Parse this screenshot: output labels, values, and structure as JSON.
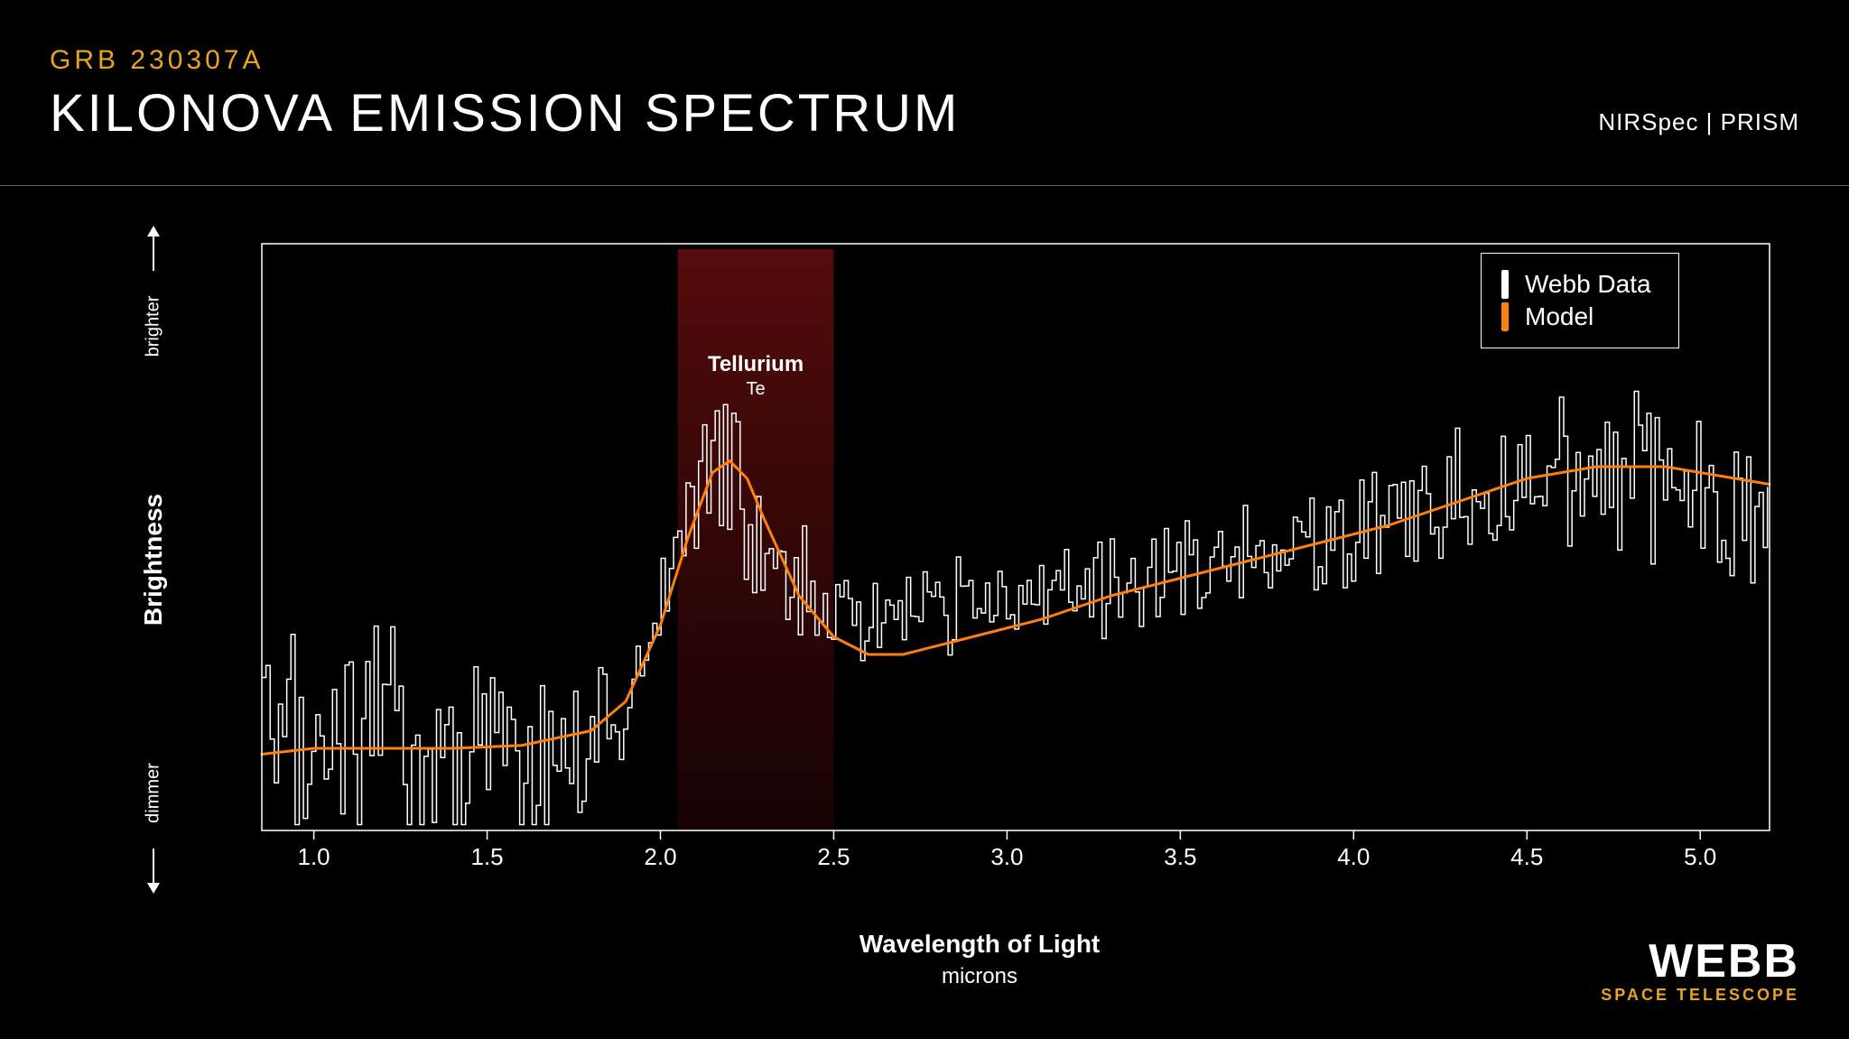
{
  "header": {
    "subtitle": "GRB 230307A",
    "subtitle_color": "#e8a41c",
    "title": "KILONOVA EMISSION SPECTRUM",
    "title_color": "#ffffff",
    "instrument": "NIRSpec | PRISM"
  },
  "axes": {
    "xlabel": "Wavelength of Light",
    "xsublabel": "microns",
    "ylabel": "Brightness",
    "ylabel_brighter": "brighter",
    "ylabel_dimmer": "dimmer"
  },
  "legend": {
    "items": [
      {
        "label": "Webb Data",
        "color": "#ffffff"
      },
      {
        "label": "Model",
        "color": "#ff7f0e"
      }
    ]
  },
  "feature": {
    "name": "Tellurium",
    "symbol": "Te",
    "x_start": 2.05,
    "x_end": 2.5,
    "band_color_top": "#5a0c0c",
    "band_color_bottom": "#2a0505"
  },
  "chart": {
    "background": "#000000",
    "axis_color": "#ffffff",
    "xlim": [
      0.85,
      5.2
    ],
    "ylim": [
      0,
      1.0
    ],
    "xticks": [
      1.0,
      1.5,
      2.0,
      2.5,
      3.0,
      3.5,
      4.0,
      4.5,
      5.0
    ],
    "xtick_labels": [
      "1.0",
      "1.5",
      "2.0",
      "2.5",
      "3.0",
      "3.5",
      "4.0",
      "4.5",
      "5.0"
    ],
    "tick_fontsize": 26,
    "model_color": "#ff7f0e",
    "model_width": 3,
    "data_color": "#ffffff",
    "data_width": 1.5,
    "model": [
      [
        0.85,
        0.13
      ],
      [
        1.0,
        0.14
      ],
      [
        1.2,
        0.14
      ],
      [
        1.4,
        0.14
      ],
      [
        1.6,
        0.145
      ],
      [
        1.8,
        0.17
      ],
      [
        1.9,
        0.22
      ],
      [
        2.0,
        0.35
      ],
      [
        2.08,
        0.5
      ],
      [
        2.15,
        0.61
      ],
      [
        2.2,
        0.63
      ],
      [
        2.25,
        0.6
      ],
      [
        2.3,
        0.53
      ],
      [
        2.4,
        0.4
      ],
      [
        2.5,
        0.33
      ],
      [
        2.6,
        0.3
      ],
      [
        2.7,
        0.3
      ],
      [
        2.9,
        0.33
      ],
      [
        3.1,
        0.36
      ],
      [
        3.3,
        0.4
      ],
      [
        3.5,
        0.43
      ],
      [
        3.7,
        0.46
      ],
      [
        3.9,
        0.49
      ],
      [
        4.1,
        0.52
      ],
      [
        4.3,
        0.56
      ],
      [
        4.5,
        0.6
      ],
      [
        4.7,
        0.62
      ],
      [
        4.9,
        0.62
      ],
      [
        5.1,
        0.6
      ],
      [
        5.2,
        0.59
      ]
    ],
    "data_baseline": [
      [
        0.85,
        0.1
      ],
      [
        0.95,
        0.13
      ],
      [
        1.05,
        0.16
      ],
      [
        1.15,
        0.18
      ],
      [
        1.25,
        0.19
      ],
      [
        1.35,
        0.15
      ],
      [
        1.45,
        0.13
      ],
      [
        1.55,
        0.12
      ],
      [
        1.65,
        0.11
      ],
      [
        1.75,
        0.14
      ],
      [
        1.85,
        0.18
      ],
      [
        1.95,
        0.3
      ],
      [
        2.05,
        0.48
      ],
      [
        2.12,
        0.65
      ],
      [
        2.18,
        0.62
      ],
      [
        2.25,
        0.55
      ],
      [
        2.35,
        0.45
      ],
      [
        2.45,
        0.4
      ],
      [
        2.55,
        0.36
      ],
      [
        2.7,
        0.36
      ],
      [
        2.85,
        0.37
      ],
      [
        3.0,
        0.39
      ],
      [
        3.15,
        0.4
      ],
      [
        3.3,
        0.43
      ],
      [
        3.45,
        0.44
      ],
      [
        3.6,
        0.46
      ],
      [
        3.75,
        0.47
      ],
      [
        3.9,
        0.49
      ],
      [
        4.05,
        0.51
      ],
      [
        4.2,
        0.54
      ],
      [
        4.35,
        0.57
      ],
      [
        4.5,
        0.61
      ],
      [
        4.65,
        0.62
      ],
      [
        4.8,
        0.61
      ],
      [
        4.95,
        0.58
      ],
      [
        5.1,
        0.56
      ],
      [
        5.2,
        0.55
      ]
    ],
    "noise_amp_segments": [
      [
        0.85,
        0.22
      ],
      [
        1.3,
        0.25
      ],
      [
        1.7,
        0.18
      ],
      [
        2.0,
        0.12
      ],
      [
        2.15,
        0.18
      ],
      [
        2.5,
        0.1
      ],
      [
        3.5,
        0.1
      ],
      [
        4.2,
        0.12
      ],
      [
        4.5,
        0.16
      ],
      [
        5.2,
        0.16
      ]
    ],
    "data_spacing": 0.012,
    "noise_seed": 42
  },
  "logo": {
    "main": "WEBB",
    "sub": "SPACE TELESCOPE",
    "sub_color": "#e8a41c"
  }
}
